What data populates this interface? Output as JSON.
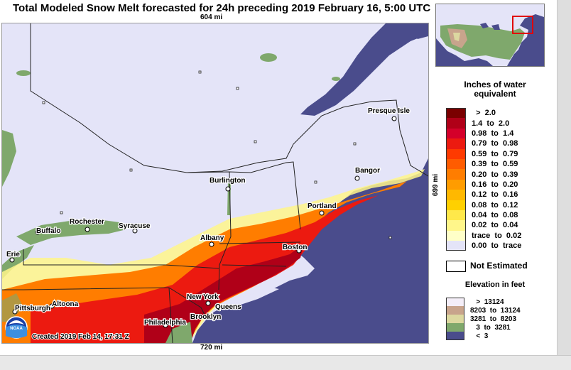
{
  "title": "Total Modeled Snow Melt forecasted for 24h preceding 2019 February 16, 5:00 UTC",
  "scale": {
    "top": "604 mi",
    "bottom": "720 mi",
    "right": "699 mi"
  },
  "created": "Created 2019 Feb 14, 17:31 Z",
  "logo_text": "NOAA",
  "cities": [
    {
      "name": "Presque Isle"
    },
    {
      "name": "Burlington"
    },
    {
      "name": "Bangor"
    },
    {
      "name": "Portland"
    },
    {
      "name": "Rochester"
    },
    {
      "name": "Syracuse"
    },
    {
      "name": "Buffalo"
    },
    {
      "name": "Albany"
    },
    {
      "name": "Boston"
    },
    {
      "name": "Erie"
    },
    {
      "name": "New York"
    },
    {
      "name": "Queens"
    },
    {
      "name": "Pittsburgh"
    },
    {
      "name": "Altoona"
    },
    {
      "name": "Brooklyn"
    },
    {
      "name": "Philadelphia"
    }
  ],
  "legend": {
    "title_line1": "Inches of water",
    "title_line2": "equivalent",
    "rows": [
      {
        "label": "  >  2.0",
        "color": "#7a0000"
      },
      {
        "label": "1.4  to  2.0",
        "color": "#b00018"
      },
      {
        "label": "0.98  to  1.4",
        "color": "#d4002a"
      },
      {
        "label": "0.79  to  0.98",
        "color": "#ec1a10"
      },
      {
        "label": "0.59  to  0.79",
        "color": "#fe3a00"
      },
      {
        "label": "0.39  to  0.59",
        "color": "#ff5c00"
      },
      {
        "label": "0.20  to  0.39",
        "color": "#ff7d00"
      },
      {
        "label": "0.16  to  0.20",
        "color": "#ff9c00"
      },
      {
        "label": "0.12  to  0.16",
        "color": "#ffb800"
      },
      {
        "label": "0.08  to  0.12",
        "color": "#ffd000"
      },
      {
        "label": "0.04  to  0.08",
        "color": "#ffe84a"
      },
      {
        "label": "0.02  to  0.04",
        "color": "#fff68a"
      },
      {
        "label": "trace  to  0.02",
        "color": "#ffffc8"
      },
      {
        "label": "0.00  to  trace",
        "color": "#e4e4f8"
      }
    ],
    "not_estimated": "Not Estimated"
  },
  "elevation": {
    "title": "Elevation in feet",
    "rows": [
      {
        "label": "   >  13124",
        "color": "#f4eef8"
      },
      {
        "label": "8203  to  13124",
        "color": "#c8a48c"
      },
      {
        "label": "3281  to  8203",
        "color": "#dcd8a0"
      },
      {
        "label": "   3  to  3281",
        "color": "#7fa86c"
      },
      {
        "label": "   <  3",
        "color": "#4a4c8c"
      }
    ]
  },
  "colors": {
    "water": "#4a4c8c",
    "land_bg": "#e4e4f8",
    "lowland": "#7fa86c"
  }
}
